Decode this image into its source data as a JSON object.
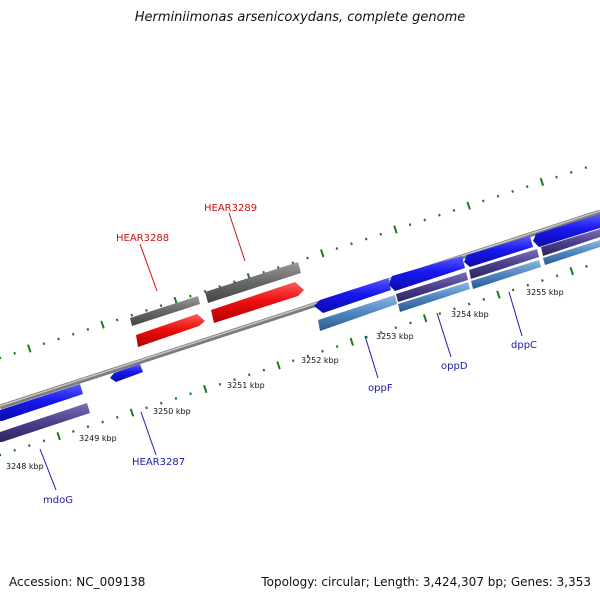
{
  "title": "Herminiimonas arsenicoxydans, complete genome",
  "footer": {
    "accession": "Accession: NC_009138",
    "summary": "Topology: circular; Length: 3,424,307 bp; Genes: 3,353"
  },
  "scale_labels": [
    "3248 kbp",
    "3249 kbp",
    "3250 kbp",
    "3251 kbp",
    "3252 kbp",
    "3253 kbp",
    "3254 kbp",
    "3255 kbp"
  ],
  "gene_labels": {
    "mdoG": "mdoG",
    "HEAR3287": "HEAR3287",
    "HEAR3288": "HEAR3288",
    "HEAR3289": "HEAR3289",
    "oppF": "oppF",
    "oppD": "oppD",
    "dppC": "dppC"
  },
  "colors": {
    "forward_cds": "#1a1af0",
    "reverse_cds": "#ee1111",
    "rna_grey": "#6e6e6e",
    "cog_purple": "#4a3f8c",
    "cog_steel": "#4f86c0",
    "tick_green": "#1f7a1f",
    "backbone": "#999999"
  }
}
